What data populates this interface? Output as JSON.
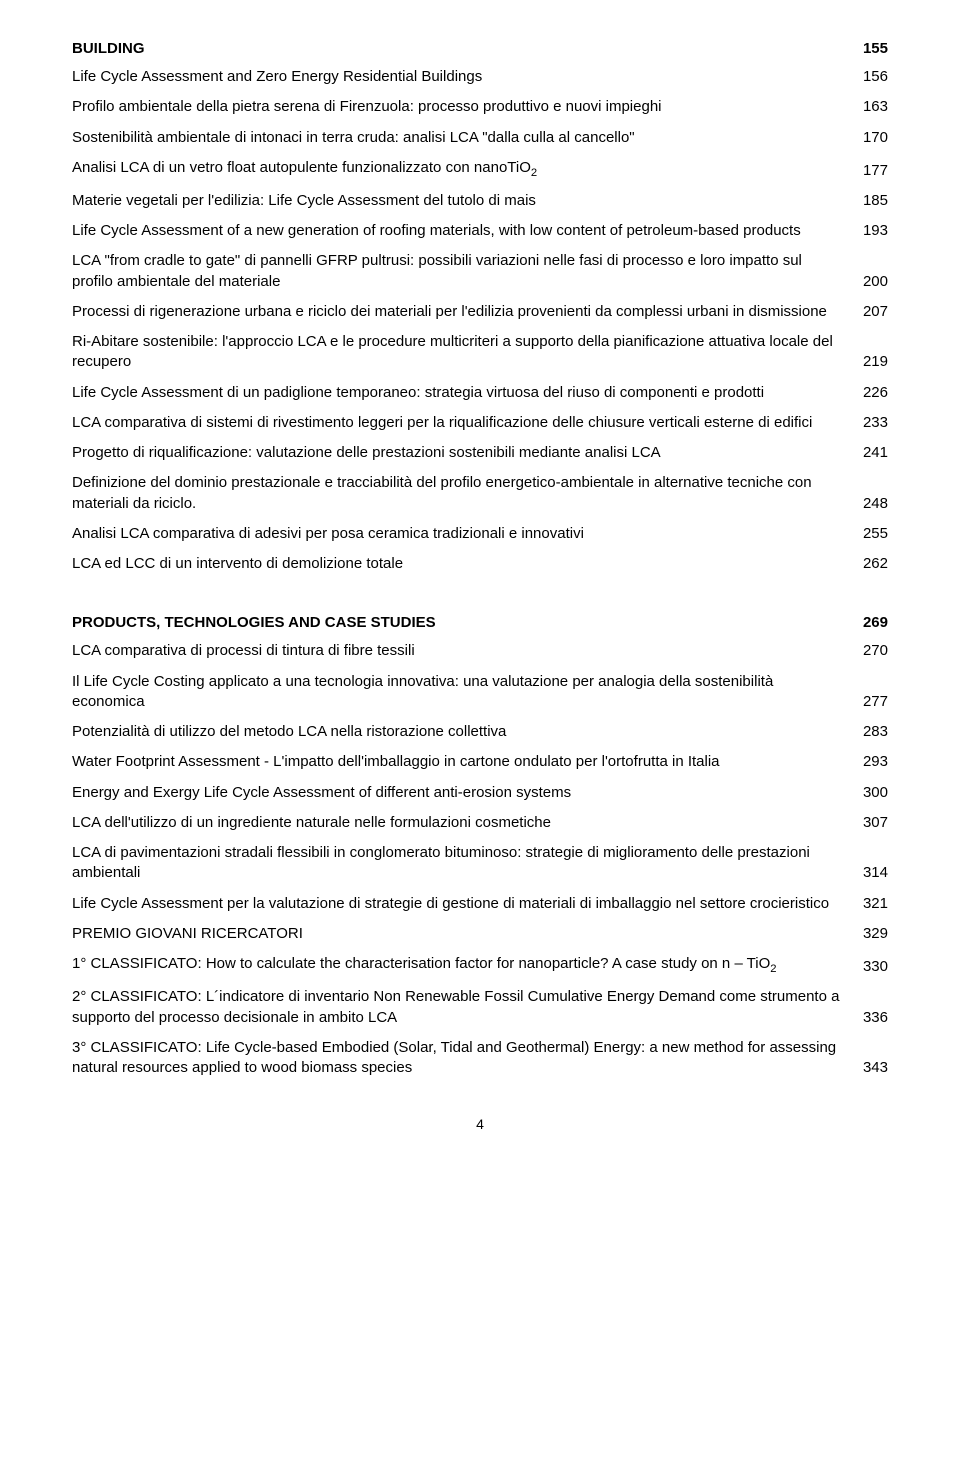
{
  "sections": [
    {
      "heading": {
        "label": "BUILDING",
        "page": "155"
      },
      "entries": [
        {
          "text": "Life Cycle Assessment and Zero Energy Residential Buildings",
          "page": "156"
        },
        {
          "text": "Profilo ambientale della pietra serena di Firenzuola: processo produttivo e nuovi impieghi",
          "page": "163"
        },
        {
          "text": "Sostenibilità ambientale di intonaci in terra cruda: analisi LCA \"dalla culla al cancello\"",
          "page": "170"
        },
        {
          "text": "Analisi LCA di un vetro float autopulente funzionalizzato con nanoTiO<sub>2</sub>",
          "page": "177"
        },
        {
          "text": "Materie vegetali per l'edilizia: Life Cycle Assessment del tutolo di mais",
          "page": "185"
        },
        {
          "text": "Life Cycle Assessment of a new generation of roofing materials, with low content of petroleum-based products",
          "page": "193"
        },
        {
          "text": "LCA \"from cradle to gate\" di pannelli GFRP pultrusi: possibili variazioni nelle fasi di processo e loro impatto sul profilo ambientale del materiale",
          "page": "200"
        },
        {
          "text": "Processi di rigenerazione urbana e riciclo dei materiali per l'edilizia provenienti da complessi urbani in dismissione",
          "page": "207"
        },
        {
          "text": "Ri-Abitare sostenibile: l'approccio LCA e le procedure multicriteri a supporto della pianificazione attuativa locale del recupero",
          "page": "219"
        },
        {
          "text": "Life Cycle Assessment di un padiglione temporaneo: strategia virtuosa del riuso di componenti e prodotti",
          "page": "226"
        },
        {
          "text": "LCA comparativa di sistemi di rivestimento leggeri per la riqualificazione delle chiusure verticali esterne di edifici",
          "page": "233"
        },
        {
          "text": "Progetto di riqualificazione:  valutazione delle prestazioni sostenibili mediante analisi LCA",
          "page": "241"
        },
        {
          "text": "Definizione del dominio prestazionale e tracciabilità del profilo energetico-ambientale in alternative tecniche con materiali da riciclo.",
          "page": "248"
        },
        {
          "text": "Analisi LCA comparativa di adesivi per posa ceramica   tradizionali e innovativi",
          "page": "255"
        },
        {
          "text": "LCA ed LCC di un intervento di demolizione totale",
          "page": "262"
        }
      ]
    },
    {
      "heading": {
        "label": "PRODUCTS, TECHNOLOGIES AND CASE STUDIES",
        "page": "269"
      },
      "entries": [
        {
          "text": "LCA comparativa di processi di tintura di fibre tessili",
          "page": "270"
        },
        {
          "text": "Il Life Cycle Costing applicato a una tecnologia innovativa: una valutazione per analogia della sostenibilità economica",
          "page": "277"
        },
        {
          "text": "Potenzialità di utilizzo del metodo LCA nella ristorazione collettiva",
          "page": "283"
        },
        {
          "text": "Water Footprint Assessment - L'impatto dell'imballaggio in cartone ondulato  per l'ortofrutta in Italia",
          "page": "293"
        },
        {
          "text": "Energy and Exergy Life Cycle Assessment of different anti-erosion systems",
          "page": "300"
        },
        {
          "text": "LCA dell'utilizzo di un ingrediente naturale nelle formulazioni cosmetiche",
          "page": "307"
        },
        {
          "text": "LCA di pavimentazioni stradali flessibili in conglomerato bituminoso: strategie di miglioramento delle prestazioni ambientali",
          "page": "314"
        },
        {
          "text": "Life Cycle Assessment per la valutazione di strategie di gestione di materiali di imballaggio nel settore crocieristico",
          "page": "321"
        },
        {
          "text": "PREMIO GIOVANI RICERCATORI",
          "page": "329"
        },
        {
          "text": "1° CLASSIFICATO: How to calculate the characterisation factor for nanoparticle? A case study on n – TiO<sub>2</sub>",
          "page": "330"
        },
        {
          "text": "2° CLASSIFICATO: L´indicatore di inventario Non Renewable Fossil Cumulative Energy Demand come strumento a supporto del processo decisionale in ambito LCA",
          "page": "336"
        },
        {
          "text": "3° CLASSIFICATO: Life Cycle-based Embodied (Solar, Tidal and Geothermal) Energy: a new method for assessing natural resources applied to wood biomass species",
          "page": "343"
        }
      ]
    }
  ],
  "pageNumber": "4"
}
